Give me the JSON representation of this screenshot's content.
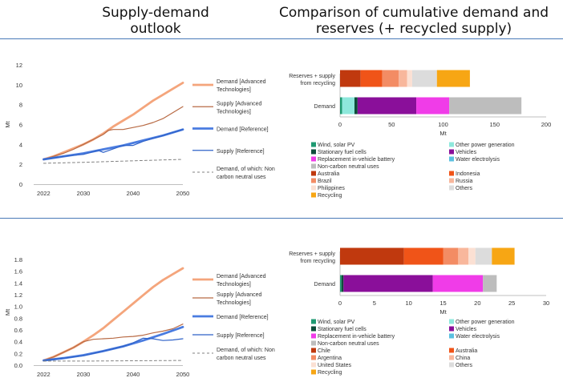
{
  "header": {
    "left_title": [
      "Supply-demand",
      "outlook"
    ],
    "right_title": [
      "Comparison of cumulative demand and",
      "reserves (+ recycled supply)"
    ]
  },
  "colors": {
    "rule": "#4a7ab8",
    "demand_adv": "#f4a57c",
    "supply_adv": "#b86a44",
    "demand_ref": "#4a7ce0",
    "supply_ref": "#2f62c8",
    "non_carbon": "#808080",
    "grid_text": "#333333"
  },
  "chart_data": [
    {
      "id": "lines-top",
      "type": "line",
      "ylabel": "Mt",
      "x_ticks": [
        "2022",
        "2030",
        "2040",
        "2050"
      ],
      "y_ticks": [
        "0",
        "2",
        "4",
        "6",
        "8",
        "10",
        "12"
      ],
      "xlim": [
        2020,
        2050
      ],
      "ylim": [
        0,
        12
      ],
      "series": [
        {
          "name": "Demand [Advanced Technologies]",
          "label_lines": [
            "Demand [Advanced",
            "Technologies]"
          ],
          "color": "#f4a57c",
          "width": 2.8,
          "dash": "",
          "x": [
            2022,
            2024,
            2026,
            2028,
            2030,
            2032,
            2034,
            2036,
            2038,
            2040,
            2042,
            2044,
            2046,
            2048,
            2050
          ],
          "y": [
            2.5,
            2.8,
            3.2,
            3.6,
            4.0,
            4.5,
            5.1,
            5.8,
            6.4,
            7.0,
            7.7,
            8.4,
            9.0,
            9.6,
            10.2
          ]
        },
        {
          "name": "Supply [Advanced Technologies]",
          "label_lines": [
            "Supply [Advanced",
            "Technologies]"
          ],
          "color": "#b86a44",
          "width": 1.2,
          "dash": "",
          "x": [
            2022,
            2024,
            2026,
            2028,
            2030,
            2032,
            2034,
            2035,
            2036,
            2038,
            2040,
            2042,
            2044,
            2046,
            2048,
            2050
          ],
          "y": [
            2.5,
            2.8,
            3.1,
            3.5,
            4.0,
            4.5,
            5.0,
            5.4,
            5.5,
            5.5,
            5.7,
            5.9,
            6.2,
            6.6,
            7.2,
            7.8
          ]
        },
        {
          "name": "Demand [Reference]",
          "label_lines": [
            "Demand [Reference]"
          ],
          "color": "#4a7ce0",
          "width": 2.8,
          "dash": "",
          "x": [
            2022,
            2026,
            2030,
            2034,
            2038,
            2042,
            2046,
            2050
          ],
          "y": [
            2.5,
            2.8,
            3.1,
            3.5,
            3.9,
            4.4,
            4.9,
            5.5
          ]
        },
        {
          "name": "Supply [Reference]",
          "label_lines": [
            "Supply [Reference]"
          ],
          "color": "#2f62c8",
          "width": 1.2,
          "dash": "",
          "x": [
            2022,
            2026,
            2030,
            2033,
            2034,
            2038,
            2040,
            2042,
            2046,
            2050
          ],
          "y": [
            2.5,
            2.8,
            3.0,
            3.4,
            3.2,
            3.9,
            3.9,
            4.3,
            4.9,
            5.5
          ]
        },
        {
          "name": "Demand, of which: Non carbon neutral uses",
          "label_lines": [
            "Demand, of which: Non",
            "carbon neutral uses"
          ],
          "color": "#808080",
          "width": 1.0,
          "dash": "3,3",
          "x": [
            2022,
            2030,
            2040,
            2050
          ],
          "y": [
            2.1,
            2.2,
            2.35,
            2.5
          ]
        }
      ]
    },
    {
      "id": "lines-bottom",
      "type": "line",
      "ylabel": "Mt",
      "x_ticks": [
        "2022",
        "2030",
        "2040",
        "2050"
      ],
      "y_ticks": [
        "0.0",
        "0.2",
        "0.4",
        "0.6",
        "0.8",
        "1.0",
        "1.2",
        "1.4",
        "1.6",
        "1.8"
      ],
      "xlim": [
        2020,
        2050
      ],
      "ylim": [
        0,
        1.8
      ],
      "series": [
        {
          "name": "Demand [Advanced Technologies]",
          "label_lines": [
            "Demand [Advanced",
            "Technologies]"
          ],
          "color": "#f4a57c",
          "width": 2.8,
          "dash": "",
          "x": [
            2022,
            2024,
            2026,
            2028,
            2030,
            2032,
            2034,
            2036,
            2038,
            2040,
            2042,
            2044,
            2046,
            2048,
            2050
          ],
          "y": [
            0.08,
            0.14,
            0.22,
            0.3,
            0.4,
            0.51,
            0.63,
            0.77,
            0.91,
            1.05,
            1.19,
            1.33,
            1.45,
            1.55,
            1.65
          ]
        },
        {
          "name": "Supply [Advanced Technologies]",
          "label_lines": [
            "Supply [Advanced",
            "Technologies]"
          ],
          "color": "#b86a44",
          "width": 1.2,
          "dash": "",
          "x": [
            2022,
            2024,
            2026,
            2028,
            2030,
            2032,
            2034,
            2036,
            2038,
            2040,
            2042,
            2044,
            2046,
            2048,
            2050
          ],
          "y": [
            0.08,
            0.14,
            0.22,
            0.3,
            0.4,
            0.44,
            0.45,
            0.46,
            0.48,
            0.49,
            0.51,
            0.55,
            0.58,
            0.62,
            0.7
          ]
        },
        {
          "name": "Demand [Reference]",
          "label_lines": [
            "Demand [Reference]"
          ],
          "color": "#4a7ce0",
          "width": 2.8,
          "dash": "",
          "x": [
            2022,
            2026,
            2030,
            2034,
            2038,
            2042,
            2046,
            2050
          ],
          "y": [
            0.08,
            0.12,
            0.17,
            0.24,
            0.32,
            0.42,
            0.53,
            0.65
          ]
        },
        {
          "name": "Supply [Reference]",
          "label_lines": [
            "Supply [Reference]"
          ],
          "color": "#2f62c8",
          "width": 1.2,
          "dash": "",
          "x": [
            2022,
            2026,
            2030,
            2034,
            2038,
            2040,
            2042,
            2044,
            2046,
            2048,
            2050
          ],
          "y": [
            0.08,
            0.12,
            0.16,
            0.24,
            0.32,
            0.38,
            0.46,
            0.45,
            0.42,
            0.43,
            0.45
          ]
        },
        {
          "name": "Demand, of which: Non carbon neutral uses",
          "label_lines": [
            "Demand, of which: Non",
            "carbon neutral uses"
          ],
          "color": "#808080",
          "width": 1.0,
          "dash": "3,3",
          "x": [
            2022,
            2030,
            2040,
            2050
          ],
          "y": [
            0.07,
            0.07,
            0.075,
            0.08
          ]
        }
      ]
    },
    {
      "id": "bars-top",
      "type": "bar",
      "orientation": "horizontal",
      "stacked": true,
      "xlabel": "Mt",
      "xlim": [
        0,
        200
      ],
      "x_ticks": [
        "0",
        "50",
        "100",
        "150",
        "200"
      ],
      "categories": [
        {
          "label_lines": [
            "Reserves + supply",
            "from recycling"
          ],
          "segments": [
            {
              "name": "Australia",
              "value": 20
            },
            {
              "name": "Indonesia",
              "value": 21
            },
            {
              "name": "Brazil",
              "value": 16
            },
            {
              "name": "Russia",
              "value": 8
            },
            {
              "name": "Philippines",
              "value": 5
            },
            {
              "name": "Others",
              "value": 24
            },
            {
              "name": "Recycling",
              "value": 32
            }
          ]
        },
        {
          "label_lines": [
            "Demand"
          ],
          "segments": [
            {
              "name": "Wind, solar PV",
              "value": 2
            },
            {
              "name": "Other power generation",
              "value": 12
            },
            {
              "name": "Stationary fuel cells",
              "value": 3
            },
            {
              "name": "Vehicles",
              "value": 57
            },
            {
              "name": "Replacement in-vehicle battery",
              "value": 32
            },
            {
              "name": "Non-carbon neutral uses",
              "value": 70
            }
          ]
        }
      ],
      "legend": [
        {
          "name": "Wind, solar PV",
          "color": "#1f9a72"
        },
        {
          "name": "Other power generation",
          "color": "#8ee8dc"
        },
        {
          "name": "Stationary fuel cells",
          "color": "#0e4d3a"
        },
        {
          "name": "Vehicles",
          "color": "#8a0f9a"
        },
        {
          "name": "Replacement in-vehicle battery",
          "color": "#f03ce8"
        },
        {
          "name": "Water electrolysis",
          "color": "#5bc0e0"
        },
        {
          "name": "Non-carbon neutral uses",
          "color": "#bdbdbd"
        },
        {
          "name": "",
          "color": ""
        },
        {
          "name": "Australia",
          "color": "#c0390e"
        },
        {
          "name": "Indonesia",
          "color": "#f05418"
        },
        {
          "name": "Brazil",
          "color": "#f38c64"
        },
        {
          "name": "Russia",
          "color": "#f8b79c"
        },
        {
          "name": "Philippines",
          "color": "#fbe0d3"
        },
        {
          "name": "Others",
          "color": "#dcdcdc"
        },
        {
          "name": "Recycling",
          "color": "#f7a614"
        }
      ]
    },
    {
      "id": "bars-bottom",
      "type": "bar",
      "orientation": "horizontal",
      "stacked": true,
      "xlabel": "Mt",
      "xlim": [
        0,
        30
      ],
      "x_ticks": [
        "0",
        "5",
        "10",
        "15",
        "20",
        "25",
        "30"
      ],
      "categories": [
        {
          "label_lines": [
            "Reserves + supply",
            "from recycling"
          ],
          "segments": [
            {
              "name": "Chile",
              "value": 9.3
            },
            {
              "name": "Australia",
              "value": 5.7
            },
            {
              "name": "Argentina",
              "value": 2.2
            },
            {
              "name": "China",
              "value": 1.5
            },
            {
              "name": "United States",
              "value": 1.0
            },
            {
              "name": "Others",
              "value": 2.4
            },
            {
              "name": "Recycling",
              "value": 3.3
            }
          ]
        },
        {
          "label_lines": [
            "Demand"
          ],
          "segments": [
            {
              "name": "Wind, solar PV",
              "value": 0.2
            },
            {
              "name": "Stationary fuel cells",
              "value": 0.3
            },
            {
              "name": "Vehicles",
              "value": 13.0
            },
            {
              "name": "Replacement in-vehicle battery",
              "value": 7.3
            },
            {
              "name": "Non-carbon neutral uses",
              "value": 2.0
            }
          ]
        }
      ],
      "legend": [
        {
          "name": "Wind, solar PV",
          "color": "#1f9a72"
        },
        {
          "name": "Other power generation",
          "color": "#8ee8dc"
        },
        {
          "name": "Stationary fuel cells",
          "color": "#0e4d3a"
        },
        {
          "name": "Vehicles",
          "color": "#8a0f9a"
        },
        {
          "name": "Replacement in-vehicle battery",
          "color": "#f03ce8"
        },
        {
          "name": "Water electrolysis",
          "color": "#5bc0e0"
        },
        {
          "name": "Non-carbon neutral uses",
          "color": "#bdbdbd"
        },
        {
          "name": "",
          "color": ""
        },
        {
          "name": "Chile",
          "color": "#c0390e"
        },
        {
          "name": "Australia",
          "color": "#f05418"
        },
        {
          "name": "Argentina",
          "color": "#f38c64"
        },
        {
          "name": "China",
          "color": "#f8b79c"
        },
        {
          "name": "United States",
          "color": "#fbe0d3"
        },
        {
          "name": "Others",
          "color": "#dcdcdc"
        },
        {
          "name": "Recycling",
          "color": "#f7a614"
        }
      ]
    }
  ]
}
